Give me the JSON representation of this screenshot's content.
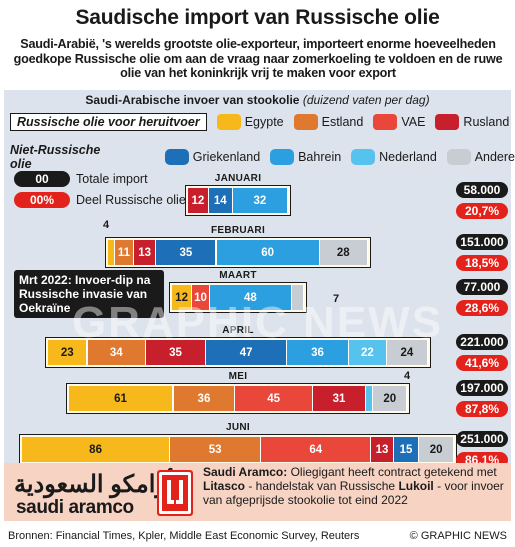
{
  "title": "Saudische import van Russische olie",
  "subtitle": "Saudi-Arabië, 's werelds grootste olie-exporteur, importeert enorme hoeveelheden goedkope Russische olie om aan de vraag naar zomerkoeling te voldoen en de ruwe olie van het koninkrijk vrij te maken voor export",
  "panel_title": "Saudi-Arabische invoer van stookolie",
  "panel_unit": "(duizend vaten per dag)",
  "legend": {
    "russian_label": "Russische olie voor heruitvoer",
    "non_russian_label": "Niet-Russische olie",
    "items": [
      {
        "key": "egypte",
        "label": "Egypte",
        "color": "#f6b81a"
      },
      {
        "key": "estland",
        "label": "Estland",
        "color": "#e07930"
      },
      {
        "key": "vae",
        "label": "VAE",
        "color": "#e8473a"
      },
      {
        "key": "rusland",
        "label": "Rusland",
        "color": "#c7202c"
      },
      {
        "key": "griekenland",
        "label": "Griekenland",
        "color": "#1d6fb8"
      },
      {
        "key": "bahrein",
        "label": "Bahrein",
        "color": "#2c9fe0"
      },
      {
        "key": "nederland",
        "label": "Nederland",
        "color": "#55c3ee"
      },
      {
        "key": "andere",
        "label": "Andere",
        "color": "#c8ccd3"
      }
    ]
  },
  "key": {
    "total_value": "00",
    "total_label": "Totale import",
    "share_value": "00%",
    "share_label": "Deel Russische olie"
  },
  "note": "Mrt 2022: Invoer-dip na Russische invasie van Oekraïne",
  "annotations": {
    "feb_egypt": "4",
    "mar_other": "7",
    "may_nl": "4"
  },
  "chart_data": {
    "type": "bar",
    "title": "Saudi-Arabische invoer van stookolie",
    "unit": "duizend vaten per dag",
    "months": [
      {
        "name": "JANUARI",
        "total": "58.000",
        "share": "20,7%",
        "segments": [
          {
            "k": "rusland",
            "v": 12
          },
          {
            "k": "griekenland",
            "v": 14
          },
          {
            "k": "bahrein",
            "v": 32
          }
        ]
      },
      {
        "name": "FEBRUARI",
        "total": "151.000",
        "share": "18,5%",
        "segments": [
          {
            "k": "egypte",
            "v": 4
          },
          {
            "k": "estland",
            "v": 11
          },
          {
            "k": "rusland",
            "v": 13
          },
          {
            "k": "griekenland",
            "v": 35
          },
          {
            "k": "bahrein",
            "v": 60
          },
          {
            "k": "andere",
            "v": 28
          }
        ]
      },
      {
        "name": "MAART",
        "total": "77.000",
        "share": "28,6%",
        "segments": [
          {
            "k": "egypte",
            "v": 12
          },
          {
            "k": "vae",
            "v": 10
          },
          {
            "k": "bahrein",
            "v": 48
          },
          {
            "k": "andere",
            "v": 7
          }
        ]
      },
      {
        "name": "APRIL",
        "total": "221.000",
        "share": "41,6%",
        "segments": [
          {
            "k": "egypte",
            "v": 23
          },
          {
            "k": "estland",
            "v": 34
          },
          {
            "k": "rusland",
            "v": 35
          },
          {
            "k": "griekenland",
            "v": 47
          },
          {
            "k": "bahrein",
            "v": 36
          },
          {
            "k": "nederland",
            "v": 22
          },
          {
            "k": "andere",
            "v": 24
          }
        ]
      },
      {
        "name": "MEI",
        "total": "197.000",
        "share": "87,8%",
        "segments": [
          {
            "k": "egypte",
            "v": 61
          },
          {
            "k": "estland",
            "v": 36
          },
          {
            "k": "vae",
            "v": 45
          },
          {
            "k": "rusland",
            "v": 31
          },
          {
            "k": "nederland",
            "v": 4
          },
          {
            "k": "andere",
            "v": 20
          }
        ]
      },
      {
        "name": "JUNI",
        "total": "251.000",
        "share": "86,1%",
        "segments": [
          {
            "k": "egypte",
            "v": 86
          },
          {
            "k": "estland",
            "v": 53
          },
          {
            "k": "vae",
            "v": 64
          },
          {
            "k": "rusland",
            "v": 13
          },
          {
            "k": "griekenland",
            "v": 15
          },
          {
            "k": "andere",
            "v": 20
          }
        ]
      }
    ]
  },
  "aramco": {
    "logo_arabic": "أرامكو السعودية",
    "logo_latin": "saudi aramco",
    "lead": "Saudi Aramco:",
    "text1": " Oliegigant heeft contract getekend met ",
    "litasco": "Litasco",
    "text2": " - handelstak van Russische ",
    "lukoil": "Lukoil",
    "text3": " - voor invoer van afgeprijsde stookolie tot eind 2022"
  },
  "sources": "Bronnen: Financial Times, Kpler, Middle East Economic Survey, Reuters",
  "credit": "© GRAPHIC NEWS",
  "watermark": "GRAPHIC NEWS"
}
